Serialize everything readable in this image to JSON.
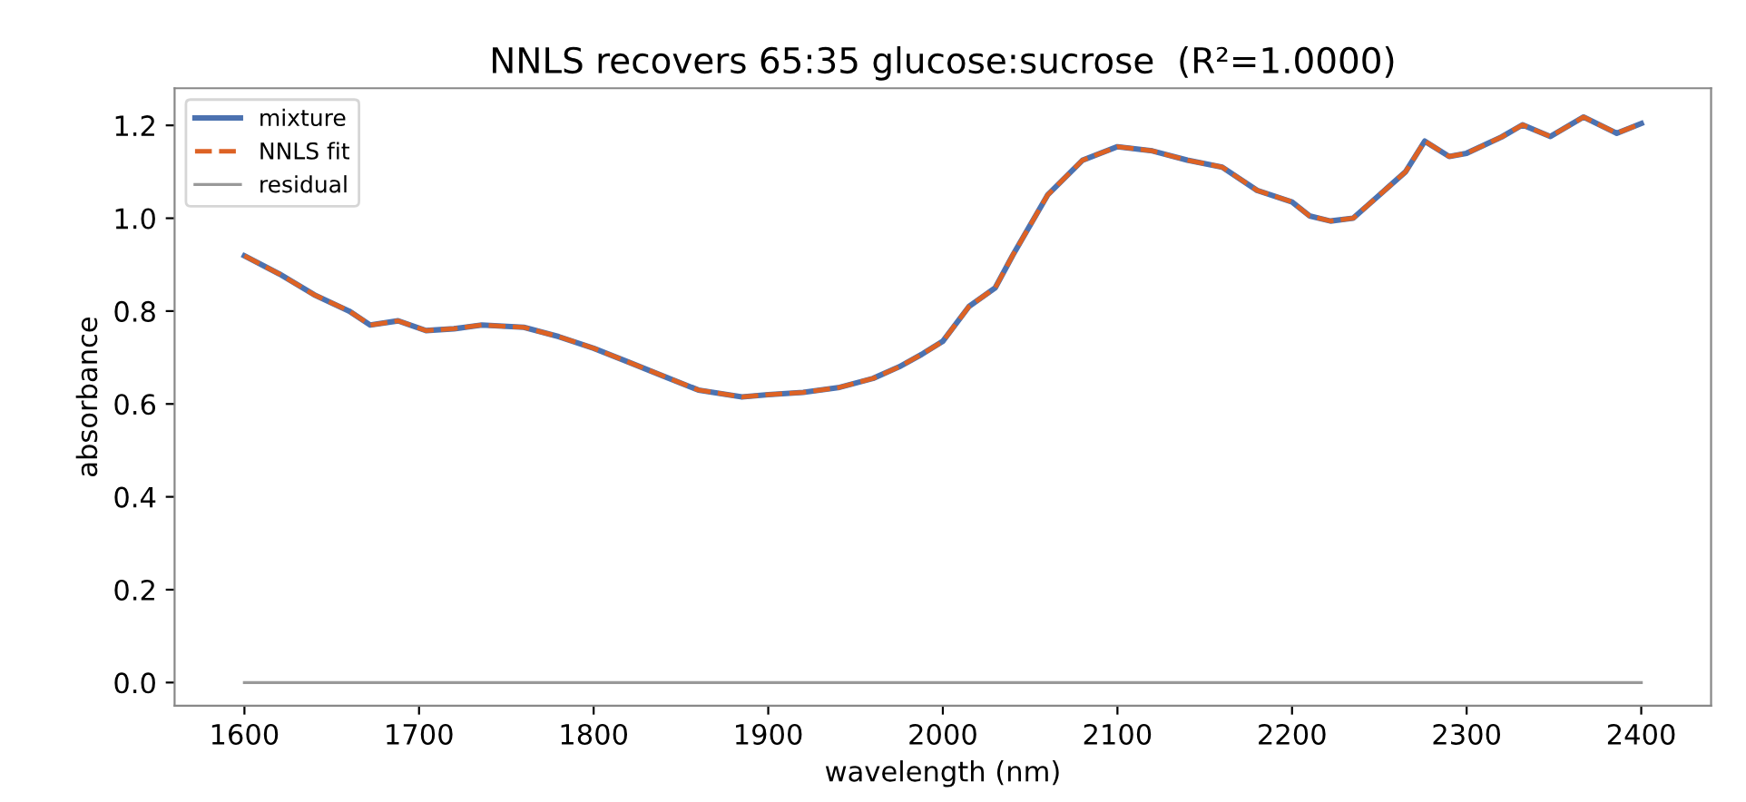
{
  "chart_data": {
    "type": "line",
    "title": "NNLS recovers 65:35 glucose:sucrose  (R²=1.0000)",
    "xlabel": "wavelength (nm)",
    "ylabel": "absorbance",
    "x": [
      1600,
      1620,
      1640,
      1660,
      1672,
      1688,
      1704,
      1720,
      1736,
      1760,
      1780,
      1800,
      1820,
      1840,
      1860,
      1885,
      1900,
      1920,
      1940,
      1960,
      1975,
      1988,
      2000,
      2015,
      2030,
      2040,
      2060,
      2080,
      2100,
      2120,
      2140,
      2160,
      2180,
      2200,
      2210,
      2222,
      2235,
      2250,
      2265,
      2276,
      2290,
      2300,
      2320,
      2332,
      2348,
      2367,
      2386,
      2400
    ],
    "series": [
      {
        "name": "mixture",
        "color": "#4c72b0",
        "line_style": "solid",
        "values": [
          0.919,
          0.88,
          0.835,
          0.8,
          0.77,
          0.779,
          0.758,
          0.762,
          0.77,
          0.765,
          0.745,
          0.72,
          0.69,
          0.66,
          0.63,
          0.615,
          0.62,
          0.625,
          0.635,
          0.655,
          0.68,
          0.707,
          0.735,
          0.81,
          0.85,
          0.92,
          1.05,
          1.125,
          1.154,
          1.145,
          1.125,
          1.11,
          1.06,
          1.035,
          1.005,
          0.994,
          1.0,
          1.05,
          1.1,
          1.166,
          1.133,
          1.14,
          1.175,
          1.201,
          1.176,
          1.218,
          1.183,
          1.204
        ]
      },
      {
        "name": "NNLS fit",
        "color": "#dd6224",
        "line_style": "dashed",
        "values": [
          0.919,
          0.88,
          0.835,
          0.8,
          0.77,
          0.779,
          0.758,
          0.762,
          0.77,
          0.765,
          0.745,
          0.72,
          0.69,
          0.66,
          0.63,
          0.615,
          0.62,
          0.625,
          0.635,
          0.655,
          0.68,
          0.707,
          0.735,
          0.81,
          0.85,
          0.92,
          1.05,
          1.125,
          1.154,
          1.145,
          1.125,
          1.11,
          1.06,
          1.035,
          1.005,
          0.994,
          1.0,
          1.05,
          1.1,
          1.166,
          1.133,
          1.14,
          1.175,
          1.201,
          1.176,
          1.218,
          1.183,
          1.204
        ]
      },
      {
        "name": "residual",
        "color": "#999999",
        "line_style": "solid",
        "values": [
          0,
          0,
          0,
          0,
          0,
          0,
          0,
          0,
          0,
          0,
          0,
          0,
          0,
          0,
          0,
          0,
          0,
          0,
          0,
          0,
          0,
          0,
          0,
          0,
          0,
          0,
          0,
          0,
          0,
          0,
          0,
          0,
          0,
          0,
          0,
          0,
          0,
          0,
          0,
          0,
          0,
          0,
          0,
          0,
          0,
          0,
          0,
          0
        ]
      }
    ],
    "xlim": [
      1560,
      2440
    ],
    "xticks": [
      1600,
      1700,
      1800,
      1900,
      2000,
      2100,
      2200,
      2300,
      2400
    ],
    "ylim": [
      -0.05,
      1.28
    ],
    "yticks": [
      {
        "value": 0,
        "label": "0.0"
      },
      0.2,
      0.4,
      0.6,
      0.8,
      {
        "value": 1,
        "label": "1.0"
      },
      1.2
    ],
    "grid": false,
    "legend": "top left",
    "marker": "none"
  }
}
